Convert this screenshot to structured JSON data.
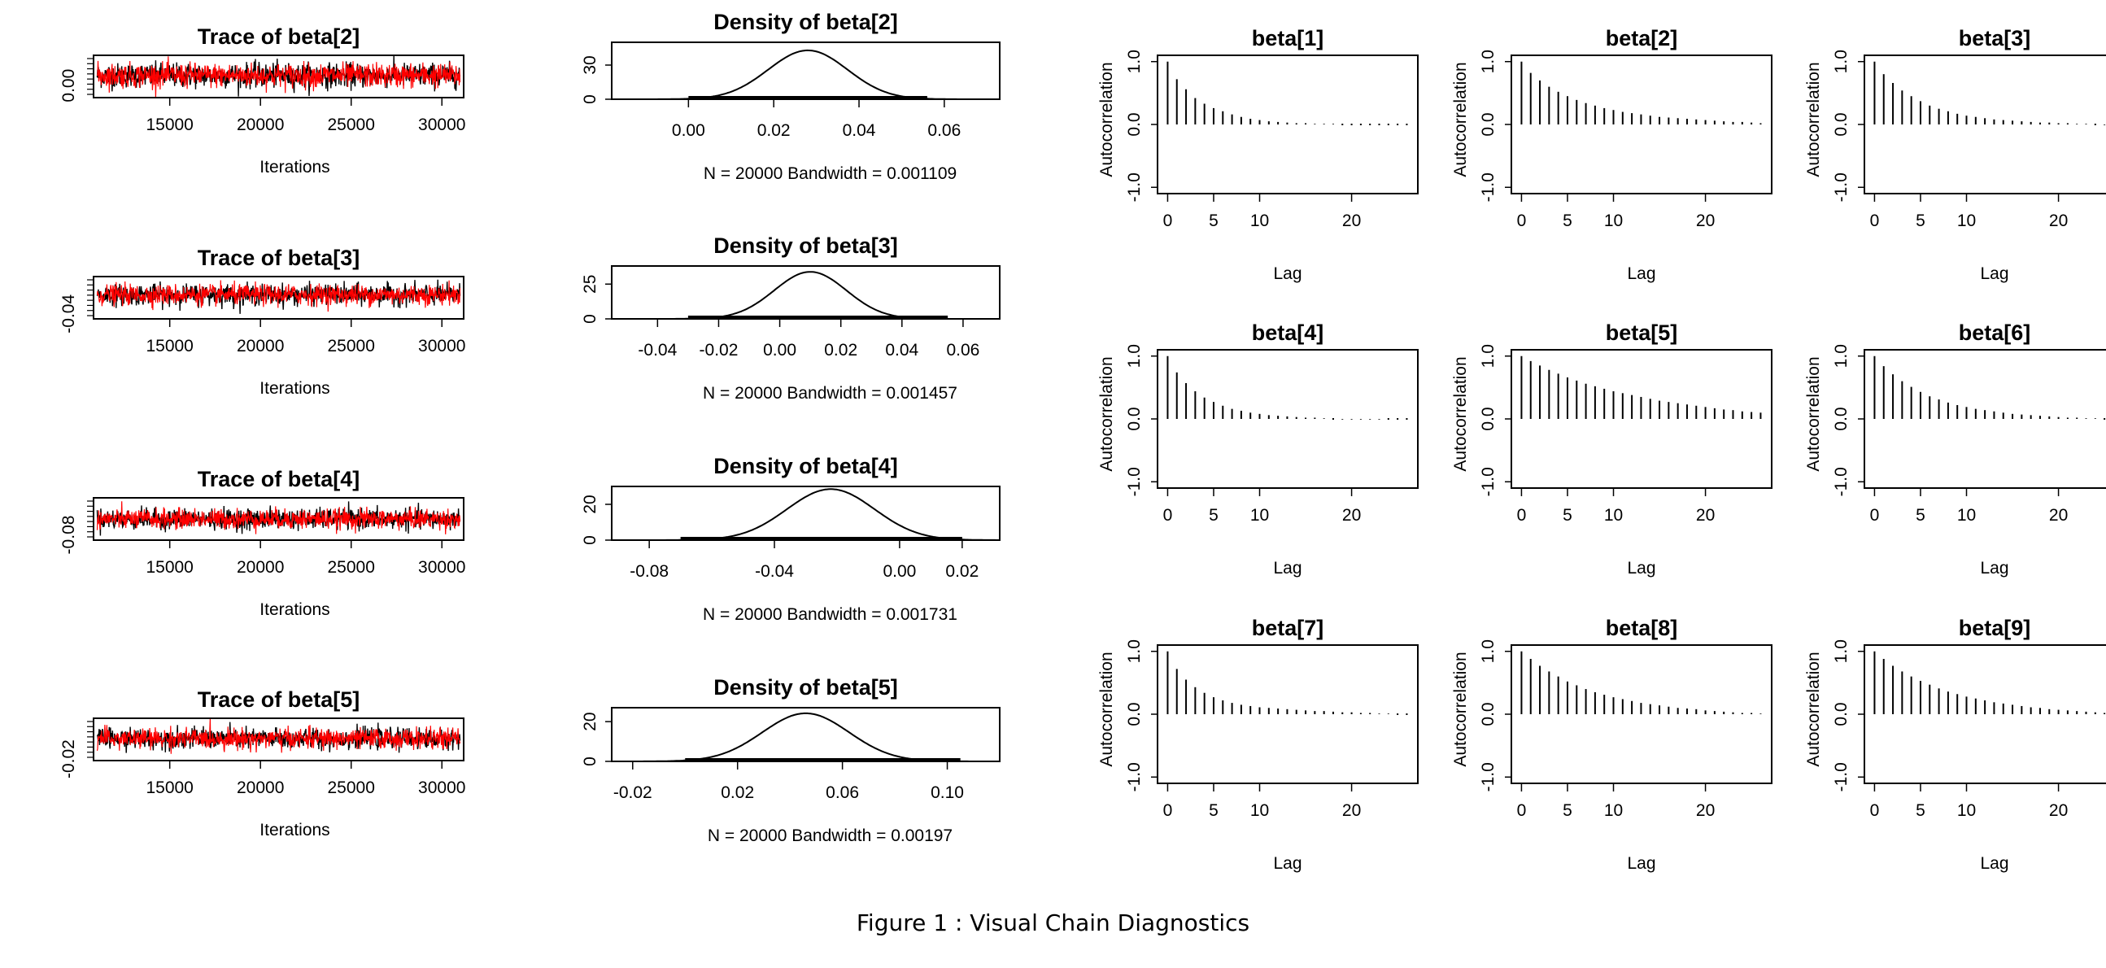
{
  "caption": "Figure 1 : Visual Chain Diagnostics",
  "chart_data": [
    {
      "type": "line",
      "group": "trace",
      "title": "Trace of beta[2]",
      "xlabel": "Iterations",
      "xticks": [
        15000,
        20000,
        25000,
        30000
      ],
      "xlim": [
        10800,
        31200
      ],
      "yticks": [
        0.0
      ],
      "ytick_labels": [
        "0.00"
      ],
      "ylim": [
        -0.018,
        0.045
      ],
      "mean": 0.015,
      "sd": 0.009,
      "series": [
        {
          "name": "chain 1",
          "color": "#000000"
        },
        {
          "name": "chain 2",
          "color": "#ff0000"
        }
      ]
    },
    {
      "type": "line",
      "group": "trace",
      "title": "Trace of beta[3]",
      "xlabel": "Iterations",
      "xticks": [
        15000,
        20000,
        25000,
        30000
      ],
      "xlim": [
        10800,
        31200
      ],
      "yticks": [
        -0.04
      ],
      "ytick_labels": [
        "-0.04"
      ],
      "ylim": [
        -0.052,
        0.048
      ],
      "mean": 0.005,
      "sd": 0.012,
      "series": [
        {
          "name": "chain 1",
          "color": "#000000"
        },
        {
          "name": "chain 2",
          "color": "#ff0000"
        }
      ]
    },
    {
      "type": "line",
      "group": "trace",
      "title": "Trace of beta[4]",
      "xlabel": "Iterations",
      "xticks": [
        15000,
        20000,
        25000,
        30000
      ],
      "xlim": [
        10800,
        31200
      ],
      "yticks": [
        -0.08
      ],
      "ytick_labels": [
        "-0.08"
      ],
      "ylim": [
        -0.095,
        0.025
      ],
      "mean": -0.035,
      "sd": 0.014,
      "series": [
        {
          "name": "chain 1",
          "color": "#000000"
        },
        {
          "name": "chain 2",
          "color": "#ff0000"
        }
      ]
    },
    {
      "type": "line",
      "group": "trace",
      "title": "Trace of beta[5]",
      "xlabel": "Iterations",
      "xticks": [
        15000,
        20000,
        25000,
        30000
      ],
      "xlim": [
        10800,
        31200
      ],
      "yticks": [
        -0.02
      ],
      "ytick_labels": [
        "-0.02"
      ],
      "ylim": [
        -0.025,
        0.11
      ],
      "mean": 0.045,
      "sd": 0.016,
      "series": [
        {
          "name": "chain 1",
          "color": "#000000"
        },
        {
          "name": "chain 2",
          "color": "#ff0000"
        }
      ]
    },
    {
      "type": "line",
      "group": "density",
      "title": "Density of beta[2]",
      "xlabel": "N = 20000   Bandwidth = 0.001109",
      "xticks": [
        0.0,
        0.02,
        0.04,
        0.06
      ],
      "xtick_labels": [
        "0.00",
        "0.02",
        "0.04",
        "0.06"
      ],
      "xlim": [
        -0.018,
        0.073
      ],
      "yticks": [
        0,
        30
      ],
      "ytick_labels": [
        "0",
        "30"
      ],
      "ylim": [
        0,
        50
      ],
      "mean": 0.028,
      "sd": 0.0093,
      "rug": [
        0.0,
        0.056
      ]
    },
    {
      "type": "line",
      "group": "density",
      "title": "Density of beta[3]",
      "xlabel": "N = 20000   Bandwidth = 0.001457",
      "xticks": [
        -0.04,
        -0.02,
        0.0,
        0.02,
        0.04,
        0.06
      ],
      "xtick_labels": [
        "-0.04",
        "-0.02",
        "0.00",
        "0.02",
        "0.04",
        "0.06"
      ],
      "xlim": [
        -0.055,
        0.072
      ],
      "yticks": [
        0,
        25
      ],
      "ytick_labels": [
        "0",
        "25"
      ],
      "ylim": [
        0,
        38
      ],
      "mean": 0.01,
      "sd": 0.0118,
      "rug": [
        -0.03,
        0.055
      ]
    },
    {
      "type": "line",
      "group": "density",
      "title": "Density of beta[4]",
      "xlabel": "N = 20000   Bandwidth = 0.001731",
      "xticks": [
        -0.08,
        -0.04,
        0.0,
        0.02
      ],
      "xtick_labels": [
        "-0.08",
        "-0.04",
        "0.00",
        "0.02"
      ],
      "xlim": [
        -0.092,
        0.032
      ],
      "yticks": [
        0,
        20
      ],
      "ytick_labels": [
        "0",
        "20"
      ],
      "ylim": [
        0,
        30
      ],
      "mean": -0.022,
      "sd": 0.014,
      "rug": [
        -0.07,
        0.02
      ]
    },
    {
      "type": "line",
      "group": "density",
      "title": "Density of beta[5]",
      "xlabel": "N = 20000   Bandwidth = 0.00197",
      "xticks": [
        -0.02,
        0.02,
        0.06,
        0.1
      ],
      "xtick_labels": [
        "-0.02",
        "0.02",
        "0.06",
        "0.10"
      ],
      "xlim": [
        -0.028,
        0.12
      ],
      "yticks": [
        0,
        20
      ],
      "ytick_labels": [
        "0",
        "20"
      ],
      "ylim": [
        0,
        27
      ],
      "mean": 0.046,
      "sd": 0.0165,
      "rug": [
        0.0,
        0.105
      ]
    },
    {
      "type": "bar",
      "group": "acf",
      "title": "beta[1]",
      "xlabel": "Lag",
      "ylabel": "Autocorrelation",
      "xticks": [
        0,
        5,
        10,
        20
      ],
      "yticks": [
        -1.0,
        0.0,
        1.0
      ],
      "ytick_labels": [
        "-1.0",
        "0.0",
        "1.0"
      ],
      "ylim": [
        -1.1,
        1.1
      ],
      "lags": [
        0,
        1,
        2,
        3,
        4,
        5,
        6,
        7,
        8,
        9,
        10,
        11,
        12,
        13,
        14,
        15,
        16,
        17,
        18,
        19,
        20,
        21,
        22,
        23,
        24,
        25,
        26
      ],
      "acf": [
        1.0,
        0.72,
        0.56,
        0.42,
        0.33,
        0.26,
        0.21,
        0.16,
        0.12,
        0.09,
        0.07,
        0.05,
        0.04,
        0.03,
        0.02,
        0.02,
        0.01,
        0.01,
        0.01,
        0.0,
        0.0,
        0.0,
        0.0,
        0.0,
        0.0,
        0.0,
        0.0
      ]
    },
    {
      "type": "bar",
      "group": "acf",
      "title": "beta[2]",
      "xlabel": "Lag",
      "ylabel": "Autocorrelation",
      "xticks": [
        0,
        5,
        10,
        20
      ],
      "yticks": [
        -1.0,
        0.0,
        1.0
      ],
      "ytick_labels": [
        "-1.0",
        "0.0",
        "1.0"
      ],
      "ylim": [
        -1.1,
        1.1
      ],
      "lags": [
        0,
        1,
        2,
        3,
        4,
        5,
        6,
        7,
        8,
        9,
        10,
        11,
        12,
        13,
        14,
        15,
        16,
        17,
        18,
        19,
        20,
        21,
        22,
        23,
        24,
        25,
        26
      ],
      "acf": [
        1.0,
        0.82,
        0.7,
        0.6,
        0.52,
        0.45,
        0.39,
        0.34,
        0.3,
        0.26,
        0.23,
        0.2,
        0.18,
        0.16,
        0.14,
        0.12,
        0.11,
        0.1,
        0.09,
        0.08,
        0.07,
        0.06,
        0.05,
        0.04,
        0.04,
        0.03,
        0.02
      ]
    },
    {
      "type": "bar",
      "group": "acf",
      "title": "beta[3]",
      "xlabel": "Lag",
      "ylabel": "Autocorrelation",
      "xticks": [
        0,
        5,
        10,
        20
      ],
      "yticks": [
        -1.0,
        0.0,
        1.0
      ],
      "ytick_labels": [
        "-1.0",
        "0.0",
        "1.0"
      ],
      "ylim": [
        -1.1,
        1.1
      ],
      "lags": [
        0,
        1,
        2,
        3,
        4,
        5,
        6,
        7,
        8,
        9,
        10,
        11,
        12,
        13,
        14,
        15,
        16,
        17,
        18,
        19,
        20,
        21,
        22,
        23,
        24,
        25,
        26
      ],
      "acf": [
        1.0,
        0.8,
        0.66,
        0.54,
        0.45,
        0.37,
        0.3,
        0.25,
        0.21,
        0.17,
        0.14,
        0.12,
        0.1,
        0.08,
        0.07,
        0.06,
        0.05,
        0.04,
        0.03,
        0.03,
        0.02,
        0.02,
        0.01,
        0.01,
        0.0,
        -0.01,
        -0.02
      ]
    },
    {
      "type": "bar",
      "group": "acf",
      "title": "beta[4]",
      "xlabel": "Lag",
      "ylabel": "Autocorrelation",
      "xticks": [
        0,
        5,
        10,
        20
      ],
      "yticks": [
        -1.0,
        0.0,
        1.0
      ],
      "ytick_labels": [
        "-1.0",
        "0.0",
        "1.0"
      ],
      "ylim": [
        -1.1,
        1.1
      ],
      "lags": [
        0,
        1,
        2,
        3,
        4,
        5,
        6,
        7,
        8,
        9,
        10,
        11,
        12,
        13,
        14,
        15,
        16,
        17,
        18,
        19,
        20,
        21,
        22,
        23,
        24,
        25,
        26
      ],
      "acf": [
        1.0,
        0.74,
        0.57,
        0.44,
        0.34,
        0.27,
        0.21,
        0.16,
        0.13,
        0.1,
        0.08,
        0.06,
        0.05,
        0.04,
        0.03,
        0.02,
        0.02,
        0.01,
        0.0,
        -0.01,
        -0.01,
        -0.01,
        -0.01,
        -0.01,
        0.0,
        0.0,
        0.0
      ]
    },
    {
      "type": "bar",
      "group": "acf",
      "title": "beta[5]",
      "xlabel": "Lag",
      "ylabel": "Autocorrelation",
      "xticks": [
        0,
        5,
        10,
        20
      ],
      "yticks": [
        -1.0,
        0.0,
        1.0
      ],
      "ytick_labels": [
        "-1.0",
        "0.0",
        "1.0"
      ],
      "ylim": [
        -1.1,
        1.1
      ],
      "lags": [
        0,
        1,
        2,
        3,
        4,
        5,
        6,
        7,
        8,
        9,
        10,
        11,
        12,
        13,
        14,
        15,
        16,
        17,
        18,
        19,
        20,
        21,
        22,
        23,
        24,
        25,
        26
      ],
      "acf": [
        1.0,
        0.92,
        0.85,
        0.78,
        0.72,
        0.66,
        0.61,
        0.56,
        0.52,
        0.48,
        0.44,
        0.41,
        0.38,
        0.35,
        0.32,
        0.29,
        0.27,
        0.25,
        0.23,
        0.21,
        0.19,
        0.17,
        0.15,
        0.14,
        0.12,
        0.11,
        0.1
      ]
    },
    {
      "type": "bar",
      "group": "acf",
      "title": "beta[6]",
      "xlabel": "Lag",
      "ylabel": "Autocorrelation",
      "xticks": [
        0,
        5,
        10,
        20
      ],
      "yticks": [
        -1.0,
        0.0,
        1.0
      ],
      "ytick_labels": [
        "-1.0",
        "0.0",
        "1.0"
      ],
      "ylim": [
        -1.1,
        1.1
      ],
      "lags": [
        0,
        1,
        2,
        3,
        4,
        5,
        6,
        7,
        8,
        9,
        10,
        11,
        12,
        13,
        14,
        15,
        16,
        17,
        18,
        19,
        20,
        21,
        22,
        23,
        24,
        25,
        26
      ],
      "acf": [
        1.0,
        0.84,
        0.71,
        0.6,
        0.51,
        0.43,
        0.36,
        0.31,
        0.26,
        0.22,
        0.19,
        0.16,
        0.14,
        0.12,
        0.1,
        0.08,
        0.07,
        0.06,
        0.05,
        0.04,
        0.03,
        0.02,
        0.02,
        0.01,
        0.01,
        0.0,
        0.0
      ]
    },
    {
      "type": "bar",
      "group": "acf",
      "title": "beta[7]",
      "xlabel": "Lag",
      "ylabel": "Autocorrelation",
      "xticks": [
        0,
        5,
        10,
        20
      ],
      "yticks": [
        -1.0,
        0.0,
        1.0
      ],
      "ytick_labels": [
        "-1.0",
        "0.0",
        "1.0"
      ],
      "ylim": [
        -1.1,
        1.1
      ],
      "lags": [
        0,
        1,
        2,
        3,
        4,
        5,
        6,
        7,
        8,
        9,
        10,
        11,
        12,
        13,
        14,
        15,
        16,
        17,
        18,
        19,
        20,
        21,
        22,
        23,
        24,
        25,
        26
      ],
      "acf": [
        1.0,
        0.72,
        0.55,
        0.43,
        0.34,
        0.27,
        0.22,
        0.18,
        0.15,
        0.13,
        0.11,
        0.1,
        0.09,
        0.08,
        0.07,
        0.06,
        0.05,
        0.05,
        0.04,
        0.03,
        0.03,
        0.02,
        0.02,
        0.01,
        0.01,
        0.0,
        0.0
      ]
    },
    {
      "type": "bar",
      "group": "acf",
      "title": "beta[8]",
      "xlabel": "Lag",
      "ylabel": "Autocorrelation",
      "xticks": [
        0,
        5,
        10,
        20
      ],
      "yticks": [
        -1.0,
        0.0,
        1.0
      ],
      "ytick_labels": [
        "-1.0",
        "0.0",
        "1.0"
      ],
      "ylim": [
        -1.1,
        1.1
      ],
      "lags": [
        0,
        1,
        2,
        3,
        4,
        5,
        6,
        7,
        8,
        9,
        10,
        11,
        12,
        13,
        14,
        15,
        16,
        17,
        18,
        19,
        20,
        21,
        22,
        23,
        24,
        25,
        26
      ],
      "acf": [
        1.0,
        0.88,
        0.77,
        0.68,
        0.6,
        0.52,
        0.46,
        0.4,
        0.35,
        0.31,
        0.27,
        0.24,
        0.21,
        0.18,
        0.16,
        0.14,
        0.12,
        0.1,
        0.09,
        0.08,
        0.06,
        0.05,
        0.04,
        0.03,
        0.02,
        0.02,
        0.01
      ]
    },
    {
      "type": "bar",
      "group": "acf",
      "title": "beta[9]",
      "xlabel": "Lag",
      "ylabel": "Autocorrelation",
      "xticks": [
        0,
        5,
        10,
        20
      ],
      "yticks": [
        -1.0,
        0.0,
        1.0
      ],
      "ytick_labels": [
        "-1.0",
        "0.0",
        "1.0"
      ],
      "ylim": [
        -1.1,
        1.1
      ],
      "lags": [
        0,
        1,
        2,
        3,
        4,
        5,
        6,
        7,
        8,
        9,
        10,
        11,
        12,
        13,
        14,
        15,
        16,
        17,
        18,
        19,
        20,
        21,
        22,
        23,
        24,
        25,
        26
      ],
      "acf": [
        1.0,
        0.88,
        0.77,
        0.68,
        0.6,
        0.53,
        0.47,
        0.41,
        0.36,
        0.32,
        0.28,
        0.25,
        0.22,
        0.19,
        0.17,
        0.15,
        0.13,
        0.11,
        0.1,
        0.08,
        0.07,
        0.06,
        0.05,
        0.04,
        0.03,
        0.02,
        0.01
      ]
    }
  ]
}
